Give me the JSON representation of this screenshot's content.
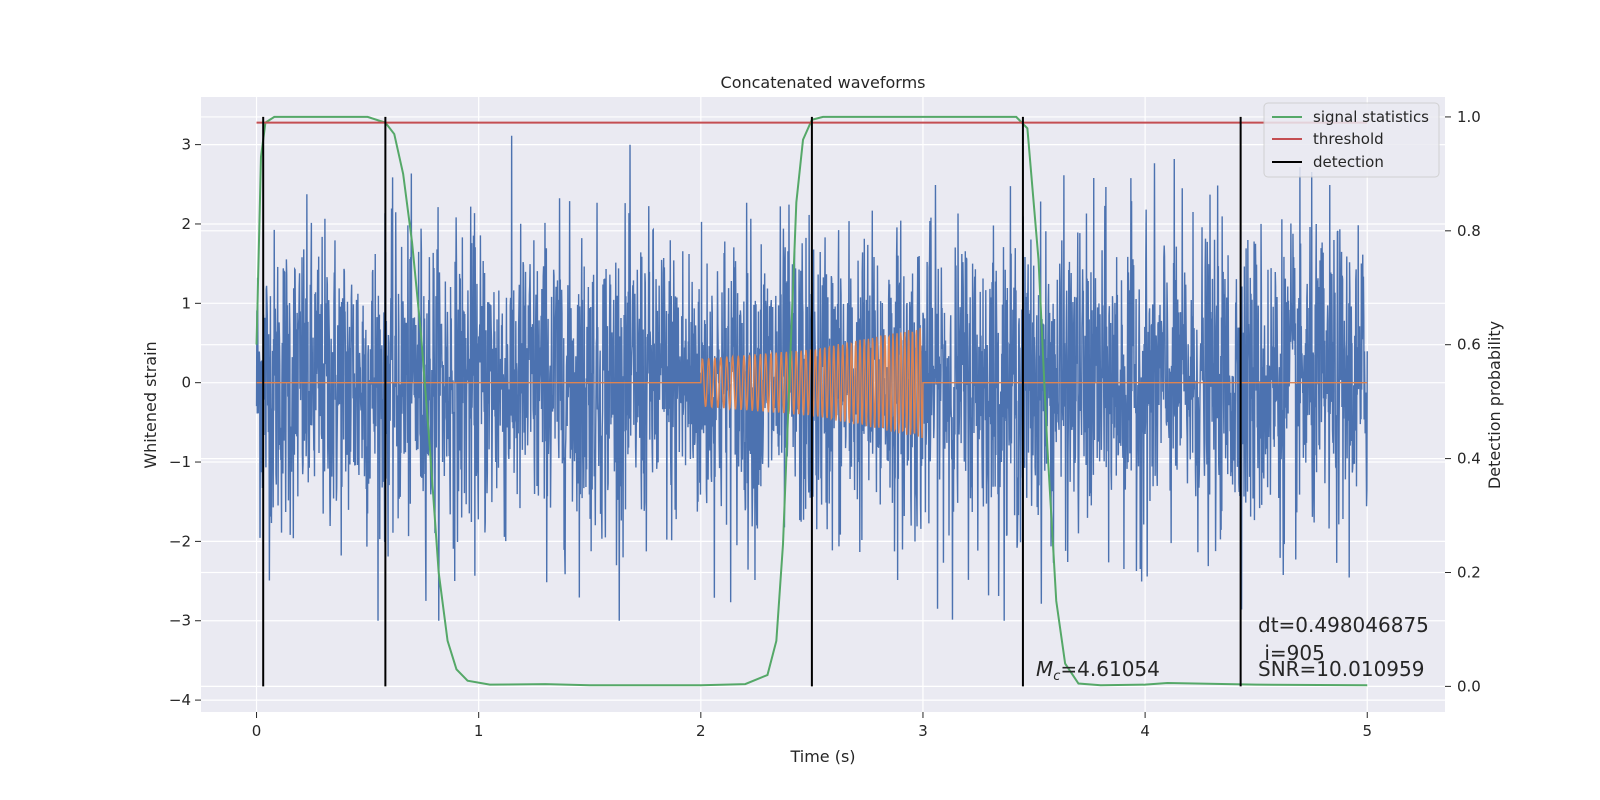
{
  "chart_data": {
    "type": "line",
    "title": "Concatenated waveforms",
    "xlabel": "Time (s)",
    "ylabel": "Whitened strain",
    "ylabel_right": "Detection probability",
    "xlim": [
      -0.25,
      5.35
    ],
    "ylim": [
      -4.15,
      3.6
    ],
    "ylim_right": [
      -0.045,
      1.035
    ],
    "x_ticks": [
      0,
      1,
      2,
      3,
      4,
      5
    ],
    "y_ticks": [
      -4,
      -3,
      -2,
      -1,
      0,
      1,
      2,
      3
    ],
    "y_ticks_right": [
      0.0,
      0.2,
      0.4,
      0.6,
      0.8,
      1.0
    ],
    "x_tick_labels": [
      "0",
      "1",
      "2",
      "3",
      "4",
      "5"
    ],
    "y_tick_labels": [
      "−4",
      "−3",
      "−2",
      "−1",
      "0",
      "1",
      "2",
      "3"
    ],
    "y_tick_labels_right": [
      "0.0",
      "0.2",
      "0.4",
      "0.6",
      "0.8",
      "1.0"
    ],
    "grid": true,
    "legend_position": "top-right",
    "colors": {
      "noise": "#4c72b0",
      "injection": "#dd8452",
      "signal_statistics": "#55a868",
      "threshold": "#c44e52",
      "detection": "#000000",
      "background": "#eaeaf2",
      "grid": "#ffffff"
    },
    "series": [
      {
        "name": "",
        "role": "noise",
        "axis": "left",
        "x_range": [
          0,
          5
        ],
        "amplitude_range": [
          -3.0,
          3.3
        ]
      },
      {
        "name": "",
        "role": "injection",
        "axis": "left",
        "x": [
          0,
          2,
          2.5,
          3,
          3.01,
          5
        ],
        "envelope": [
          0,
          0.3,
          0.42,
          0.7,
          0,
          0
        ]
      },
      {
        "name": "signal statistics",
        "role": "signal_statistics",
        "axis": "right",
        "x": [
          0,
          0.02,
          0.04,
          0.08,
          0.15,
          0.3,
          0.5,
          0.58,
          0.62,
          0.66,
          0.7,
          0.74,
          0.78,
          0.82,
          0.86,
          0.9,
          0.95,
          1.05,
          1.3,
          1.5,
          2.0,
          2.2,
          2.3,
          2.34,
          2.37,
          2.4,
          2.43,
          2.46,
          2.5,
          2.55,
          2.6,
          3.0,
          3.42,
          3.47,
          3.52,
          3.56,
          3.6,
          3.64,
          3.7,
          3.8,
          4.0,
          4.1,
          4.5,
          5.0
        ],
        "y": [
          0.6,
          0.93,
          0.99,
          1.0,
          1.0,
          1.0,
          1.0,
          0.99,
          0.97,
          0.9,
          0.78,
          0.62,
          0.42,
          0.2,
          0.08,
          0.03,
          0.01,
          0.003,
          0.004,
          0.002,
          0.002,
          0.004,
          0.02,
          0.08,
          0.25,
          0.55,
          0.85,
          0.96,
          0.995,
          1.0,
          1.0,
          1.0,
          1.0,
          0.98,
          0.75,
          0.42,
          0.15,
          0.04,
          0.005,
          0.002,
          0.003,
          0.006,
          0.003,
          0.002
        ]
      },
      {
        "name": "threshold",
        "role": "threshold",
        "axis": "right",
        "x": [
          0,
          5
        ],
        "y": [
          0.99,
          0.99
        ]
      },
      {
        "name": "detection",
        "role": "detection",
        "axis": "right",
        "x": [
          0.03,
          0.58,
          2.5,
          3.45,
          4.43
        ],
        "y_top": [
          1.0,
          1.0,
          1.0,
          1.0,
          1.0
        ]
      }
    ],
    "annotations": {
      "mc_symbol": "M",
      "mc_subscript": "c",
      "mc_value": "=4.61054",
      "dt": "dt=0.498046875",
      "i": " i=905",
      "snr": "SNR=10.010959"
    }
  }
}
